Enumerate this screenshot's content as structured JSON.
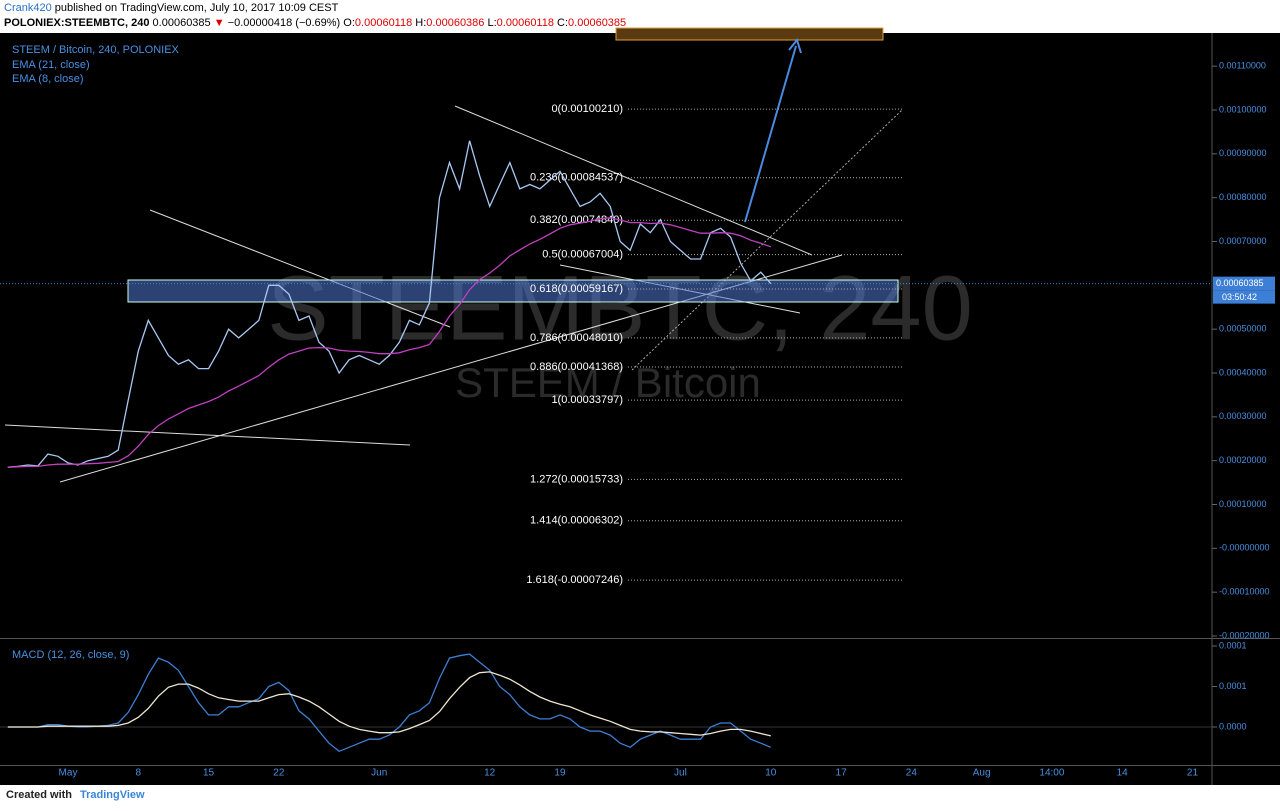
{
  "header": {
    "author": "Crank420",
    "published": "published on TradingView.com, July 10, 2017 10:09 CEST",
    "symbol": "POLONIEX:STEEMBTC, 240",
    "price": "0.00060385",
    "change_arrow": "▼",
    "change": "−0.00000418 (−0.69%)",
    "ohlc": [
      {
        "label": "O:",
        "value": "0.00060118"
      },
      {
        "label": "H:",
        "value": "0.00060386"
      },
      {
        "label": "L:",
        "value": "0.00060118"
      },
      {
        "label": "C:",
        "value": "0.00060385"
      }
    ]
  },
  "footer": {
    "created_with": "Created with",
    "brand": "TradingView"
  },
  "watermark": {
    "big": "STEEMBTC, 240",
    "small": "STEEM / Bitcoin"
  },
  "chart_data": [
    {
      "type": "line",
      "title": "STEEM / Bitcoin, 240, POLONIEX",
      "indicators": [
        "EMA (21, close)",
        "EMA (8, close)"
      ],
      "categories": [
        null,
        null,
        null,
        null,
        null,
        null,
        "May",
        null,
        null,
        null,
        null,
        null,
        null,
        "8",
        null,
        null,
        null,
        null,
        null,
        null,
        "15",
        null,
        null,
        null,
        null,
        null,
        null,
        "22",
        null,
        null,
        null,
        null,
        null,
        null,
        null,
        null,
        null,
        "Jun",
        null,
        null,
        null,
        null,
        null,
        null,
        null,
        null,
        null,
        null,
        "12",
        null,
        null,
        null,
        null,
        null,
        null,
        "19",
        null,
        null,
        null,
        null,
        null,
        null,
        null,
        null,
        null,
        null,
        null,
        "Jul",
        null,
        null,
        null,
        null,
        null,
        null,
        null,
        null,
        "10",
        null,
        null,
        null,
        null,
        null,
        null,
        "17",
        null,
        null,
        null,
        null,
        null,
        null,
        "24",
        null,
        null,
        null,
        null,
        null,
        null,
        "Aug",
        null,
        null,
        null,
        null,
        null,
        null,
        "14:00",
        null,
        null,
        null,
        null,
        null,
        null,
        "14",
        null,
        null,
        null,
        null,
        null,
        null,
        "21",
        null,
        null
      ],
      "series": [
        {
          "color": "#a9c8f2",
          "values": [
            0.000185,
            0.000187,
            0.00019,
            0.000188,
            0.000215,
            0.00021,
            0.000195,
            0.00019,
            0.0002,
            0.000205,
            0.00021,
            0.000224,
            0.000338,
            0.00045,
            0.00052,
            0.00048,
            0.00044,
            0.00042,
            0.00043,
            0.00041,
            0.00041,
            0.00045,
            0.0005,
            0.00048,
            0.0005,
            0.00052,
            0.0006,
            0.0006,
            0.00058,
            0.00052,
            0.00053,
            0.00047,
            0.00045,
            0.0004,
            0.00043,
            0.00044,
            0.00043,
            0.00042,
            0.00044,
            0.00047,
            0.00052,
            0.00051,
            0.00056,
            0.0008,
            0.00088,
            0.00082,
            0.00093,
            0.00085,
            0.00078,
            0.00083,
            0.00088,
            0.00082,
            0.00083,
            0.00082,
            0.00084,
            0.00086,
            0.00082,
            0.00078,
            0.00079,
            0.00081,
            0.00078,
            0.0007,
            0.00068,
            0.00074,
            0.00072,
            0.00075,
            0.0007,
            0.00068,
            0.00066,
            0.00066,
            0.00072,
            0.00073,
            0.00071,
            0.00065,
            0.00061,
            0.00063,
            0.00060385,
            null,
            null,
            null,
            null,
            null,
            null,
            null,
            null,
            null,
            null,
            null,
            null,
            null,
            null,
            null,
            null,
            null,
            null,
            null,
            null,
            null,
            null,
            null,
            null,
            null,
            null,
            null,
            null,
            null,
            null,
            null,
            null,
            null,
            null,
            null,
            null,
            null,
            null,
            null,
            null,
            null,
            null,
            null,
            null
          ]
        },
        {
          "color": "#c040c0",
          "values": [
            0.000185,
            0.000186,
            0.000187,
            0.000187,
            0.00019,
            0.000192,
            0.000192,
            0.000192,
            0.000193,
            0.000194,
            0.000196,
            0.000198,
            0.000211,
            0.000233,
            0.00026,
            0.00028,
            0.000295,
            0.000307,
            0.000319,
            0.000327,
            0.000335,
            0.000345,
            0.000359,
            0.00037,
            0.000382,
            0.000394,
            0.000413,
            0.00043,
            0.000443,
            0.00045,
            0.000457,
            0.000458,
            0.000457,
            0.000452,
            0.00045,
            0.000449,
            0.000447,
            0.000444,
            0.000444,
            0.000446,
            0.000453,
            0.000458,
            0.000465,
            0.000495,
            0.00053,
            0.000556,
            0.00059,
            0.000613,
            0.000628,
            0.000646,
            0.000667,
            0.000681,
            0.000694,
            0.000705,
            0.000717,
            0.00073,
            0.000738,
            0.000742,
            0.000746,
            0.000752,
            0.000754,
            0.000749,
            0.000743,
            0.000743,
            0.000741,
            0.000742,
            0.000738,
            0.000732,
            0.000725,
            0.000719,
            0.000719,
            0.00072,
            0.000719,
            0.000713,
            0.000703,
            0.000696,
            0.000688,
            null,
            null,
            null,
            null,
            null,
            null,
            null,
            null,
            null,
            null,
            null,
            null,
            null,
            null,
            null,
            null,
            null,
            null,
            null,
            null,
            null,
            null,
            null,
            null,
            null,
            null,
            null,
            null,
            null,
            null,
            null,
            null,
            null,
            null,
            null,
            null,
            null,
            null,
            null,
            null,
            null,
            null,
            null,
            null
          ]
        }
      ],
      "ylim": [
        -0.00020229,
        0.0011688
      ],
      "yticks": [
        {
          "value": 0.0011,
          "label": "0.00110000"
        },
        {
          "value": 0.001,
          "label": "0.00100000"
        },
        {
          "value": 0.0009,
          "label": "0.00090000"
        },
        {
          "value": 0.0008,
          "label": "0.00080000"
        },
        {
          "value": 0.0007,
          "label": "0.00070000"
        },
        {
          "value": 0.0005,
          "label": "0.00050000"
        },
        {
          "value": 0.0004,
          "label": "0.00040000"
        },
        {
          "value": 0.0003,
          "label": "0.00030000"
        },
        {
          "value": 0.0002,
          "label": "0.00020000"
        },
        {
          "value": 0.0001,
          "label": "0.00010000"
        },
        {
          "value": 0,
          "label": "-0.00000000"
        },
        {
          "value": -0.0001,
          "label": "-0.00010000"
        },
        {
          "value": -0.0002,
          "label": "-0.00020000"
        }
      ],
      "last_price": 0.00060385,
      "countdown": "03:50:42",
      "fib_levels": [
        {
          "label": "0(0.00100210)",
          "value": 0.0010021
        },
        {
          "label": "0.236(0.00084537)",
          "value": 0.00084537
        },
        {
          "label": "0.382(0.00074840)",
          "value": 0.0007484
        },
        {
          "label": "0.5(0.00067004)",
          "value": 0.00067004
        },
        {
          "label": "0.618(0.00059167)",
          "value": 0.00059167
        },
        {
          "label": "0.786(0.00048010)",
          "value": 0.0004801
        },
        {
          "label": "0.886(0.00041368)",
          "value": 0.00041368
        },
        {
          "label": "1(0.00033797)",
          "value": 0.00033797
        },
        {
          "label": "1.272(0.00015733)",
          "value": 0.00015733
        },
        {
          "label": "1.414(0.00006302)",
          "value": 6.302e-05
        },
        {
          "label": "1.618(-0.00007246)",
          "value": -7.246e-05
        }
      ]
    },
    {
      "type": "line",
      "title": "MACD (12, 26, close, 9)",
      "series": [
        {
          "color": "#3d7fd6",
          "values": [
            0,
            0,
            0,
            0,
            3e-06,
            3e-06,
            1e-06,
            0,
            0,
            1e-06,
            2e-06,
            5e-06,
            1.8e-05,
            4e-05,
            6.5e-05,
            8.5e-05,
            8e-05,
            7e-05,
            5e-05,
            3e-05,
            1.5e-05,
            1.5e-05,
            2.5e-05,
            2.5e-05,
            3e-05,
            3.5e-05,
            5e-05,
            5.5e-05,
            4.5e-05,
            2e-05,
            1e-05,
            -5e-06,
            -2e-05,
            -3e-05,
            -2.5e-05,
            -2e-05,
            -1.5e-05,
            -1.5e-05,
            -1e-05,
            0,
            1.5e-05,
            2e-05,
            3e-05,
            6e-05,
            8.5e-05,
            8.8e-05,
            9e-05,
            8e-05,
            7e-05,
            5e-05,
            4e-05,
            2.5e-05,
            1.5e-05,
            1e-05,
            1e-05,
            1.5e-05,
            1e-05,
            0,
            -5e-06,
            -5e-06,
            -1e-05,
            -2e-05,
            -2.5e-05,
            -1.5e-05,
            -1e-05,
            -5e-06,
            -1e-05,
            -1.5e-05,
            -1.5e-05,
            -1.5e-05,
            0,
            5e-06,
            5e-06,
            -5e-06,
            -1.5e-05,
            -2e-05,
            -2.5e-05,
            null,
            null,
            null,
            null,
            null,
            null,
            null,
            null,
            null,
            null,
            null,
            null,
            null,
            null,
            null,
            null,
            null,
            null,
            null,
            null,
            null,
            null,
            null,
            null,
            null,
            null,
            null,
            null,
            null,
            null,
            null,
            null,
            null,
            null,
            null,
            null,
            null,
            null,
            null,
            null,
            null,
            null,
            null,
            null
          ]
        },
        {
          "color": "#efe6d0",
          "values": [
            0,
            0,
            0,
            0,
            1e-06,
            1e-06,
            1e-06,
            1e-06,
            1e-06,
            1e-06,
            1e-06,
            2e-06,
            5e-06,
            1.2e-05,
            2.3e-05,
            3.8e-05,
            4.9e-05,
            5.3e-05,
            5.3e-05,
            4.8e-05,
            4.1e-05,
            3.6e-05,
            3.4e-05,
            3.2e-05,
            3.2e-05,
            3.2e-05,
            3.6e-05,
            4e-05,
            4.1e-05,
            3.7e-05,
            3.2e-05,
            2.5e-05,
            1.6e-05,
            7e-06,
            1e-06,
            -3e-06,
            -5e-06,
            -7e-06,
            -7e-06,
            -6e-06,
            -2e-06,
            3e-06,
            8e-06,
            1.9e-05,
            3.5e-05,
            4.9e-05,
            6.1e-05,
            6.7e-05,
            6.8e-05,
            6.4e-05,
            5.9e-05,
            5.2e-05,
            4.4e-05,
            3.7e-05,
            3.2e-05,
            2.8e-05,
            2.5e-05,
            2e-05,
            1.5e-05,
            1.1e-05,
            7e-06,
            2e-06,
            -3e-06,
            -5e-06,
            -6e-06,
            -6e-06,
            -7e-06,
            -8e-06,
            -9e-06,
            -1e-05,
            -8e-06,
            -5e-06,
            -3e-06,
            -3e-06,
            -5e-06,
            -8e-06,
            -1.1e-05,
            null,
            null,
            null,
            null,
            null,
            null,
            null,
            null,
            null,
            null,
            null,
            null,
            null,
            null,
            null,
            null,
            null,
            null,
            null,
            null,
            null,
            null,
            null,
            null,
            null,
            null,
            null,
            null,
            null,
            null,
            null,
            null,
            null,
            null,
            null,
            null,
            null,
            null,
            null,
            null,
            null,
            null,
            null,
            null
          ]
        }
      ],
      "ylim": [
        -4.69e-05,
        0.0001074
      ],
      "yticks": [
        0.0001,
        {
          "value": 5e-05,
          "label": "0.0001"
        },
        {
          "value": 0,
          "label": "0.0000"
        }
      ]
    }
  ]
}
